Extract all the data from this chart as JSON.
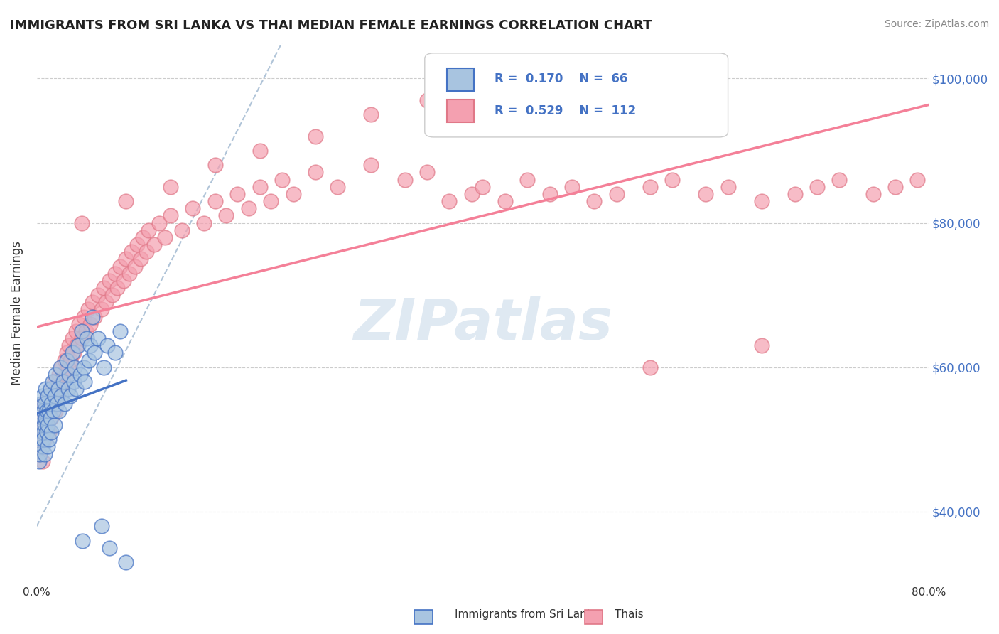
{
  "title": "IMMIGRANTS FROM SRI LANKA VS THAI MEDIAN FEMALE EARNINGS CORRELATION CHART",
  "source": "Source: ZipAtlas.com",
  "ylabel": "Median Female Earnings",
  "xlim": [
    0.0,
    0.8
  ],
  "ylim": [
    30000,
    105000
  ],
  "yticks": [
    40000,
    60000,
    80000,
    100000
  ],
  "ytick_labels": [
    "$40,000",
    "$60,000",
    "$80,000",
    "$100,000"
  ],
  "xticks": [
    0.0,
    0.8
  ],
  "xtick_labels": [
    "0.0%",
    "80.0%"
  ],
  "sri_lanka_R": 0.17,
  "sri_lanka_N": 66,
  "thai_R": 0.529,
  "thai_N": 112,
  "sri_lanka_color": "#a8c4e0",
  "thai_color": "#f4a0b0",
  "sri_lanka_line_color": "#4472c4",
  "thai_line_color": "#f48098",
  "diagonal_color": "#b0c4d8",
  "legend_text_color": "#4472c4",
  "watermark_color": "#b0c8e0",
  "background_color": "#ffffff",
  "sri_lanka_x": [
    0.002,
    0.003,
    0.003,
    0.004,
    0.004,
    0.005,
    0.005,
    0.005,
    0.006,
    0.006,
    0.006,
    0.007,
    0.007,
    0.007,
    0.008,
    0.008,
    0.009,
    0.009,
    0.01,
    0.01,
    0.01,
    0.011,
    0.011,
    0.012,
    0.012,
    0.013,
    0.013,
    0.014,
    0.015,
    0.016,
    0.016,
    0.017,
    0.018,
    0.019,
    0.02,
    0.021,
    0.022,
    0.024,
    0.025,
    0.027,
    0.028,
    0.029,
    0.03,
    0.032,
    0.033,
    0.034,
    0.035,
    0.037,
    0.039,
    0.04,
    0.041,
    0.042,
    0.043,
    0.045,
    0.047,
    0.048,
    0.05,
    0.052,
    0.055,
    0.058,
    0.06,
    0.063,
    0.065,
    0.07,
    0.075,
    0.08
  ],
  "sri_lanka_y": [
    47000,
    52000,
    48000,
    55000,
    50000,
    53000,
    49000,
    56000,
    51000,
    54000,
    50000,
    52000,
    48000,
    55000,
    53000,
    57000,
    54000,
    51000,
    56000,
    52000,
    49000,
    54000,
    50000,
    53000,
    57000,
    55000,
    51000,
    58000,
    54000,
    56000,
    52000,
    59000,
    55000,
    57000,
    54000,
    60000,
    56000,
    58000,
    55000,
    61000,
    57000,
    59000,
    56000,
    62000,
    58000,
    60000,
    57000,
    63000,
    59000,
    65000,
    36000,
    60000,
    58000,
    64000,
    61000,
    63000,
    67000,
    62000,
    64000,
    38000,
    60000,
    63000,
    35000,
    62000,
    65000,
    33000
  ],
  "thai_x": [
    0.002,
    0.003,
    0.004,
    0.005,
    0.005,
    0.006,
    0.007,
    0.008,
    0.009,
    0.01,
    0.011,
    0.012,
    0.013,
    0.014,
    0.015,
    0.016,
    0.017,
    0.018,
    0.019,
    0.02,
    0.021,
    0.022,
    0.023,
    0.025,
    0.026,
    0.027,
    0.028,
    0.029,
    0.03,
    0.032,
    0.033,
    0.035,
    0.036,
    0.038,
    0.04,
    0.042,
    0.044,
    0.046,
    0.048,
    0.05,
    0.052,
    0.055,
    0.058,
    0.06,
    0.062,
    0.065,
    0.068,
    0.07,
    0.072,
    0.075,
    0.078,
    0.08,
    0.083,
    0.085,
    0.088,
    0.09,
    0.093,
    0.095,
    0.098,
    0.1,
    0.105,
    0.11,
    0.115,
    0.12,
    0.13,
    0.14,
    0.15,
    0.16,
    0.17,
    0.18,
    0.19,
    0.2,
    0.21,
    0.22,
    0.23,
    0.25,
    0.27,
    0.3,
    0.33,
    0.35,
    0.37,
    0.39,
    0.4,
    0.42,
    0.44,
    0.46,
    0.48,
    0.5,
    0.52,
    0.55,
    0.57,
    0.6,
    0.62,
    0.65,
    0.68,
    0.7,
    0.72,
    0.75,
    0.77,
    0.79,
    0.04,
    0.08,
    0.12,
    0.16,
    0.2,
    0.25,
    0.3,
    0.35,
    0.4,
    0.5,
    0.55,
    0.65
  ],
  "thai_y": [
    48000,
    50000,
    52000,
    47000,
    53000,
    55000,
    50000,
    54000,
    52000,
    56000,
    51000,
    54000,
    53000,
    57000,
    55000,
    58000,
    54000,
    57000,
    56000,
    59000,
    57000,
    60000,
    58000,
    61000,
    59000,
    62000,
    60000,
    63000,
    61000,
    64000,
    62000,
    65000,
    63000,
    66000,
    64000,
    67000,
    65000,
    68000,
    66000,
    69000,
    67000,
    70000,
    68000,
    71000,
    69000,
    72000,
    70000,
    73000,
    71000,
    74000,
    72000,
    75000,
    73000,
    76000,
    74000,
    77000,
    75000,
    78000,
    76000,
    79000,
    77000,
    80000,
    78000,
    81000,
    79000,
    82000,
    80000,
    83000,
    81000,
    84000,
    82000,
    85000,
    83000,
    86000,
    84000,
    87000,
    85000,
    88000,
    86000,
    87000,
    83000,
    84000,
    85000,
    83000,
    86000,
    84000,
    85000,
    83000,
    84000,
    85000,
    86000,
    84000,
    85000,
    83000,
    84000,
    85000,
    86000,
    84000,
    85000,
    86000,
    80000,
    83000,
    85000,
    88000,
    90000,
    92000,
    95000,
    97000,
    97000,
    97000,
    60000,
    63000
  ]
}
